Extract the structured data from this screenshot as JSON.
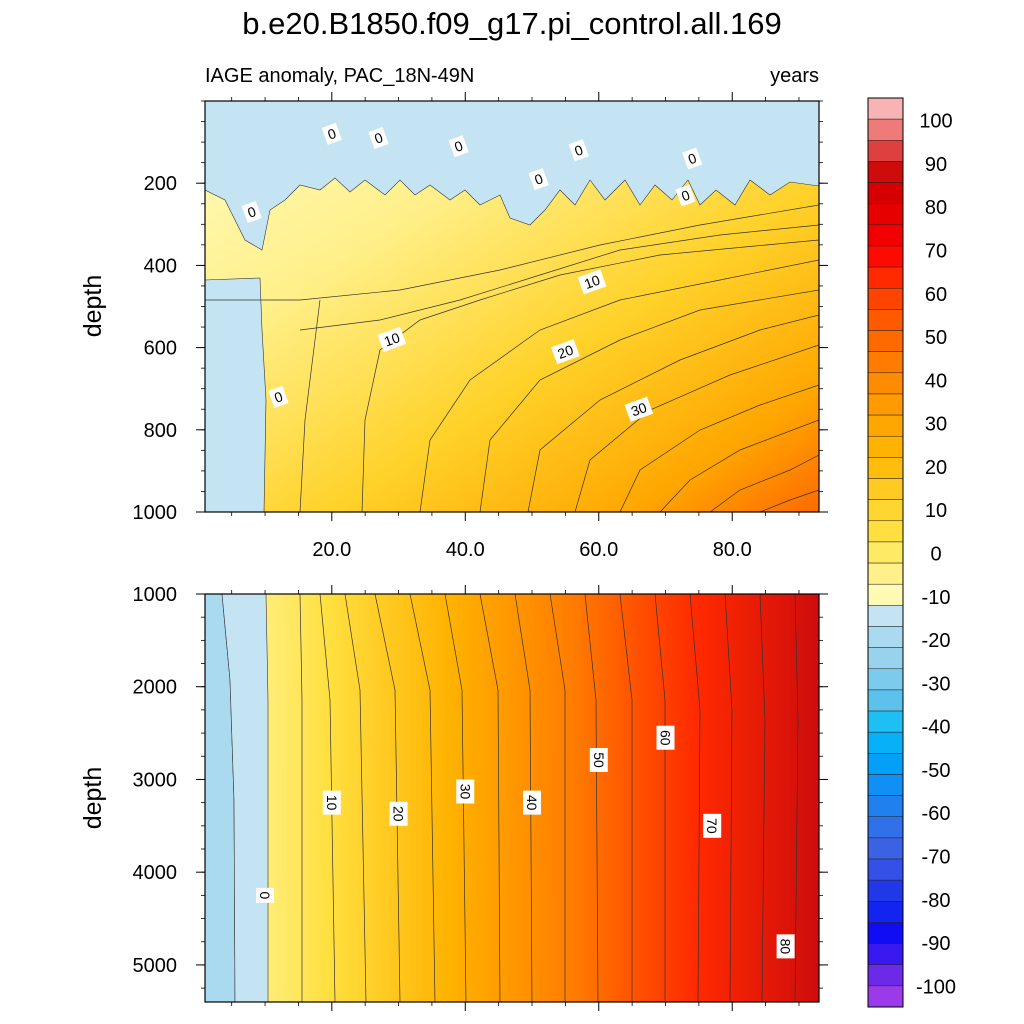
{
  "chart_data": {
    "type": "contour",
    "title": "b.e20.B1850.f09_g17.pi_control.all.169",
    "subtitle_left": "IAGE anomaly, PAC_18N-49N",
    "subtitle_right": "years",
    "xlabel": "",
    "ylabel": "depth",
    "xlim": [
      1,
      93
    ],
    "x_ticks": [
      "20.0",
      "40.0",
      "60.0",
      "80.0"
    ],
    "x_tick_values": [
      20,
      40,
      60,
      80
    ],
    "panels": [
      {
        "name": "upper",
        "ylim": [
          0,
          1000
        ],
        "y_ticks": [
          "200",
          "400",
          "600",
          "800",
          "1000"
        ],
        "y_tick_values": [
          200,
          400,
          600,
          800,
          1000
        ],
        "contour_labels": [
          {
            "text": "0",
            "x": 20,
            "y": 80
          },
          {
            "text": "0",
            "x": 27,
            "y": 90
          },
          {
            "text": "0",
            "x": 39,
            "y": 110
          },
          {
            "text": "0",
            "x": 57,
            "y": 120
          },
          {
            "text": "0",
            "x": 74,
            "y": 140
          },
          {
            "text": "0",
            "x": 51,
            "y": 190
          },
          {
            "text": "0",
            "x": 73,
            "y": 230
          },
          {
            "text": "0",
            "x": 8,
            "y": 270
          },
          {
            "text": "10",
            "x": 59,
            "y": 440
          },
          {
            "text": "10",
            "x": 29,
            "y": 580
          },
          {
            "text": "20",
            "x": 55,
            "y": 610
          },
          {
            "text": "0",
            "x": 12,
            "y": 720
          },
          {
            "text": "30",
            "x": 66,
            "y": 750
          }
        ]
      },
      {
        "name": "lower",
        "ylim": [
          1000,
          5400
        ],
        "y_ticks": [
          "1000",
          "2000",
          "3000",
          "4000",
          "5000"
        ],
        "y_tick_values": [
          1000,
          2000,
          3000,
          4000,
          5000
        ],
        "contour_labels": [
          {
            "text": "60",
            "x": 70,
            "y": 2550
          },
          {
            "text": "50",
            "x": 60,
            "y": 2790
          },
          {
            "text": "30",
            "x": 40,
            "y": 3130
          },
          {
            "text": "10",
            "x": 20,
            "y": 3250
          },
          {
            "text": "40",
            "x": 50,
            "y": 3250
          },
          {
            "text": "20",
            "x": 30,
            "y": 3370
          },
          {
            "text": "70",
            "x": 77,
            "y": 3500
          },
          {
            "text": "0",
            "x": 10,
            "y": 4250
          },
          {
            "text": "80",
            "x": 88,
            "y": 4800
          }
        ]
      }
    ],
    "colorbar": {
      "labels": [
        "100",
        "90",
        "80",
        "70",
        "60",
        "50",
        "40",
        "30",
        "20",
        "10",
        "0",
        "-10",
        "-20",
        "-30",
        "-40",
        "-50",
        "-60",
        "-70",
        "-80",
        "-90",
        "-100"
      ],
      "levels_step": 5,
      "range": [
        -105,
        105
      ],
      "colors_top_to_bottom": [
        "#f8b4b4",
        "#ee7a7a",
        "#de4040",
        "#cf0c0c",
        "#d60000",
        "#e60000",
        "#f20000",
        "#ff0a00",
        "#ff2a00",
        "#ff4400",
        "#ff5a00",
        "#ff6a00",
        "#ff7c00",
        "#ff8c00",
        "#ff9a00",
        "#ffa600",
        "#ffb200",
        "#ffbe0e",
        "#ffca22",
        "#ffd630",
        "#ffe040",
        "#ffea66",
        "#fff08a",
        "#fffab4",
        "#c4e4f4",
        "#aadaf0",
        "#98d2ec",
        "#7ccaec",
        "#5cc2ec",
        "#1ec0f4",
        "#08b0f8",
        "#04a0f8",
        "#1090f4",
        "#2080ee",
        "#3070e8",
        "#3c62e4",
        "#3450e6",
        "#2038e8",
        "#1424f0",
        "#100cf4",
        "#3a18f0",
        "#6c2ae8",
        "#9a3ae8"
      ]
    }
  }
}
